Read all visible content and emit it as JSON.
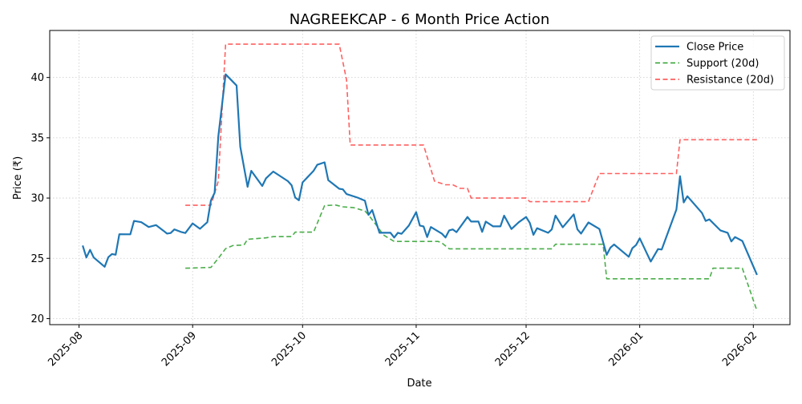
{
  "chart_data": {
    "type": "line",
    "title": "NAGREEKCAP - 6 Month Price Action",
    "xlabel": "Date",
    "ylabel": "Price (₹)",
    "xlim": [
      "2025-07-24",
      "2026-02-11"
    ],
    "ylim": [
      19.5,
      43.9
    ],
    "grid": true,
    "legend_position": "top-right",
    "x_ticks": [
      "2025-08",
      "2025-09",
      "2025-10",
      "2025-11",
      "2025-12",
      "2026-01",
      "2026-02"
    ],
    "y_ticks": [
      20,
      25,
      30,
      35,
      40
    ],
    "series": [
      {
        "name": "Close Price",
        "color": "#1f77b4",
        "style": "solid",
        "points": [
          [
            "2025-08-02",
            26.06
          ],
          [
            "2025-08-03",
            25.07
          ],
          [
            "2025-08-04",
            25.7
          ],
          [
            "2025-08-05",
            25.07
          ],
          [
            "2025-08-08",
            24.3
          ],
          [
            "2025-08-09",
            25.1
          ],
          [
            "2025-08-10",
            25.36
          ],
          [
            "2025-08-11",
            25.3
          ],
          [
            "2025-08-12",
            27.0
          ],
          [
            "2025-08-15",
            26.99
          ],
          [
            "2025-08-16",
            28.1
          ],
          [
            "2025-08-18",
            28.0
          ],
          [
            "2025-08-20",
            27.6
          ],
          [
            "2025-08-22",
            27.76
          ],
          [
            "2025-08-24",
            27.3
          ],
          [
            "2025-08-25",
            27.05
          ],
          [
            "2025-08-26",
            27.1
          ],
          [
            "2025-08-27",
            27.4
          ],
          [
            "2025-08-29",
            27.17
          ],
          [
            "2025-08-30",
            27.1
          ],
          [
            "2025-09-01",
            27.9
          ],
          [
            "2025-09-03",
            27.45
          ],
          [
            "2025-09-05",
            28.0
          ],
          [
            "2025-09-06",
            29.8
          ],
          [
            "2025-09-07",
            30.44
          ],
          [
            "2025-09-08",
            35.1
          ],
          [
            "2025-09-10",
            40.26
          ],
          [
            "2025-09-13",
            39.33
          ],
          [
            "2025-09-14",
            34.25
          ],
          [
            "2025-09-16",
            30.93
          ],
          [
            "2025-09-17",
            32.26
          ],
          [
            "2025-09-20",
            31.0
          ],
          [
            "2025-09-21",
            31.63
          ],
          [
            "2025-09-23",
            32.2
          ],
          [
            "2025-09-27",
            31.4
          ],
          [
            "2025-09-28",
            31.06
          ],
          [
            "2025-09-29",
            30.04
          ],
          [
            "2025-09-30",
            29.82
          ],
          [
            "2025-10-01",
            31.3
          ],
          [
            "2025-10-04",
            32.26
          ],
          [
            "2025-10-05",
            32.76
          ],
          [
            "2025-10-07",
            32.96
          ],
          [
            "2025-10-08",
            31.48
          ],
          [
            "2025-10-11",
            30.77
          ],
          [
            "2025-10-12",
            30.72
          ],
          [
            "2025-10-13",
            30.33
          ],
          [
            "2025-10-16",
            30.04
          ],
          [
            "2025-10-18",
            29.78
          ],
          [
            "2025-10-19",
            28.6
          ],
          [
            "2025-10-20",
            29.0
          ],
          [
            "2025-10-22",
            27.12
          ],
          [
            "2025-10-25",
            27.12
          ],
          [
            "2025-10-26",
            26.73
          ],
          [
            "2025-10-27",
            27.12
          ],
          [
            "2025-10-28",
            27.03
          ],
          [
            "2025-10-30",
            27.72
          ],
          [
            "2025-11-01",
            28.83
          ],
          [
            "2025-11-02",
            27.72
          ],
          [
            "2025-11-03",
            27.65
          ],
          [
            "2025-11-04",
            26.77
          ],
          [
            "2025-11-05",
            27.6
          ],
          [
            "2025-11-08",
            27.05
          ],
          [
            "2025-11-09",
            26.73
          ],
          [
            "2025-11-10",
            27.32
          ],
          [
            "2025-11-11",
            27.4
          ],
          [
            "2025-11-12",
            27.17
          ],
          [
            "2025-11-15",
            28.43
          ],
          [
            "2025-11-16",
            28.05
          ],
          [
            "2025-11-18",
            28.05
          ],
          [
            "2025-11-19",
            27.2
          ],
          [
            "2025-11-20",
            28.05
          ],
          [
            "2025-11-22",
            27.65
          ],
          [
            "2025-11-24",
            27.65
          ],
          [
            "2025-11-25",
            28.54
          ],
          [
            "2025-11-27",
            27.43
          ],
          [
            "2025-11-29",
            28.0
          ],
          [
            "2025-12-01",
            28.43
          ],
          [
            "2025-12-02",
            27.94
          ],
          [
            "2025-12-03",
            26.95
          ],
          [
            "2025-12-04",
            27.5
          ],
          [
            "2025-12-07",
            27.12
          ],
          [
            "2025-12-08",
            27.4
          ],
          [
            "2025-12-09",
            28.54
          ],
          [
            "2025-12-11",
            27.57
          ],
          [
            "2025-12-14",
            28.65
          ],
          [
            "2025-12-15",
            27.4
          ],
          [
            "2025-12-16",
            27.05
          ],
          [
            "2025-12-18",
            27.98
          ],
          [
            "2025-12-21",
            27.43
          ],
          [
            "2025-12-23",
            25.29
          ],
          [
            "2025-12-24",
            25.88
          ],
          [
            "2025-12-25",
            26.15
          ],
          [
            "2025-12-29",
            25.13
          ],
          [
            "2025-12-30",
            25.84
          ],
          [
            "2025-12-31",
            26.1
          ],
          [
            "2026-01-01",
            26.66
          ],
          [
            "2026-01-04",
            24.73
          ],
          [
            "2026-01-06",
            25.77
          ],
          [
            "2026-01-07",
            25.73
          ],
          [
            "2026-01-11",
            29.05
          ],
          [
            "2026-01-12",
            31.81
          ],
          [
            "2026-01-13",
            29.64
          ],
          [
            "2026-01-14",
            30.15
          ],
          [
            "2026-01-18",
            28.76
          ],
          [
            "2026-01-19",
            28.1
          ],
          [
            "2026-01-20",
            28.23
          ],
          [
            "2026-01-23",
            27.32
          ],
          [
            "2026-01-25",
            27.12
          ],
          [
            "2026-01-26",
            26.4
          ],
          [
            "2026-01-27",
            26.77
          ],
          [
            "2026-01-29",
            26.44
          ],
          [
            "2026-02-02",
            23.63
          ]
        ]
      },
      {
        "name": "Support (20d)",
        "color": "#2ca02c",
        "style": "dashed",
        "points": [
          [
            "2025-08-30",
            24.18
          ],
          [
            "2025-09-06",
            24.25
          ],
          [
            "2025-09-08",
            25.0
          ],
          [
            "2025-09-10",
            25.8
          ],
          [
            "2025-09-12",
            26.06
          ],
          [
            "2025-09-15",
            26.1
          ],
          [
            "2025-09-16",
            26.58
          ],
          [
            "2025-09-21",
            26.7
          ],
          [
            "2025-09-23",
            26.8
          ],
          [
            "2025-09-28",
            26.8
          ],
          [
            "2025-09-29",
            27.17
          ],
          [
            "2025-10-04",
            27.17
          ],
          [
            "2025-10-07",
            29.37
          ],
          [
            "2025-10-10",
            29.42
          ],
          [
            "2025-10-12",
            29.27
          ],
          [
            "2025-10-15",
            29.2
          ],
          [
            "2025-10-18",
            28.93
          ],
          [
            "2025-10-19",
            28.6
          ],
          [
            "2025-10-22",
            27.4
          ],
          [
            "2025-10-23",
            26.95
          ],
          [
            "2025-10-26",
            26.4
          ],
          [
            "2025-11-07",
            26.4
          ],
          [
            "2025-11-08",
            26.28
          ],
          [
            "2025-11-10",
            25.79
          ],
          [
            "2025-12-08",
            25.79
          ],
          [
            "2025-12-09",
            26.17
          ],
          [
            "2025-12-22",
            26.17
          ],
          [
            "2025-12-23",
            23.3
          ],
          [
            "2026-01-20",
            23.3
          ],
          [
            "2026-01-21",
            24.18
          ],
          [
            "2026-01-29",
            24.18
          ],
          [
            "2026-02-02",
            20.64
          ]
        ]
      },
      {
        "name": "Resistance (20d)",
        "color": "#ff4444",
        "style": "dashed",
        "points": [
          [
            "2025-08-30",
            29.4
          ],
          [
            "2025-09-06",
            29.4
          ],
          [
            "2025-09-08",
            31.4
          ],
          [
            "2025-09-10",
            42.76
          ],
          [
            "2025-10-11",
            42.76
          ],
          [
            "2025-10-13",
            39.8
          ],
          [
            "2025-10-14",
            34.4
          ],
          [
            "2025-11-03",
            34.4
          ],
          [
            "2025-11-06",
            31.4
          ],
          [
            "2025-11-09",
            31.1
          ],
          [
            "2025-11-11",
            31.1
          ],
          [
            "2025-11-13",
            30.8
          ],
          [
            "2025-11-15",
            30.8
          ],
          [
            "2025-11-16",
            30.0
          ],
          [
            "2025-12-01",
            30.0
          ],
          [
            "2025-12-02",
            29.7
          ],
          [
            "2025-12-18",
            29.7
          ],
          [
            "2025-12-21",
            32.03
          ],
          [
            "2026-01-11",
            32.03
          ],
          [
            "2026-01-12",
            34.84
          ],
          [
            "2026-02-02",
            34.84
          ]
        ]
      }
    ]
  }
}
